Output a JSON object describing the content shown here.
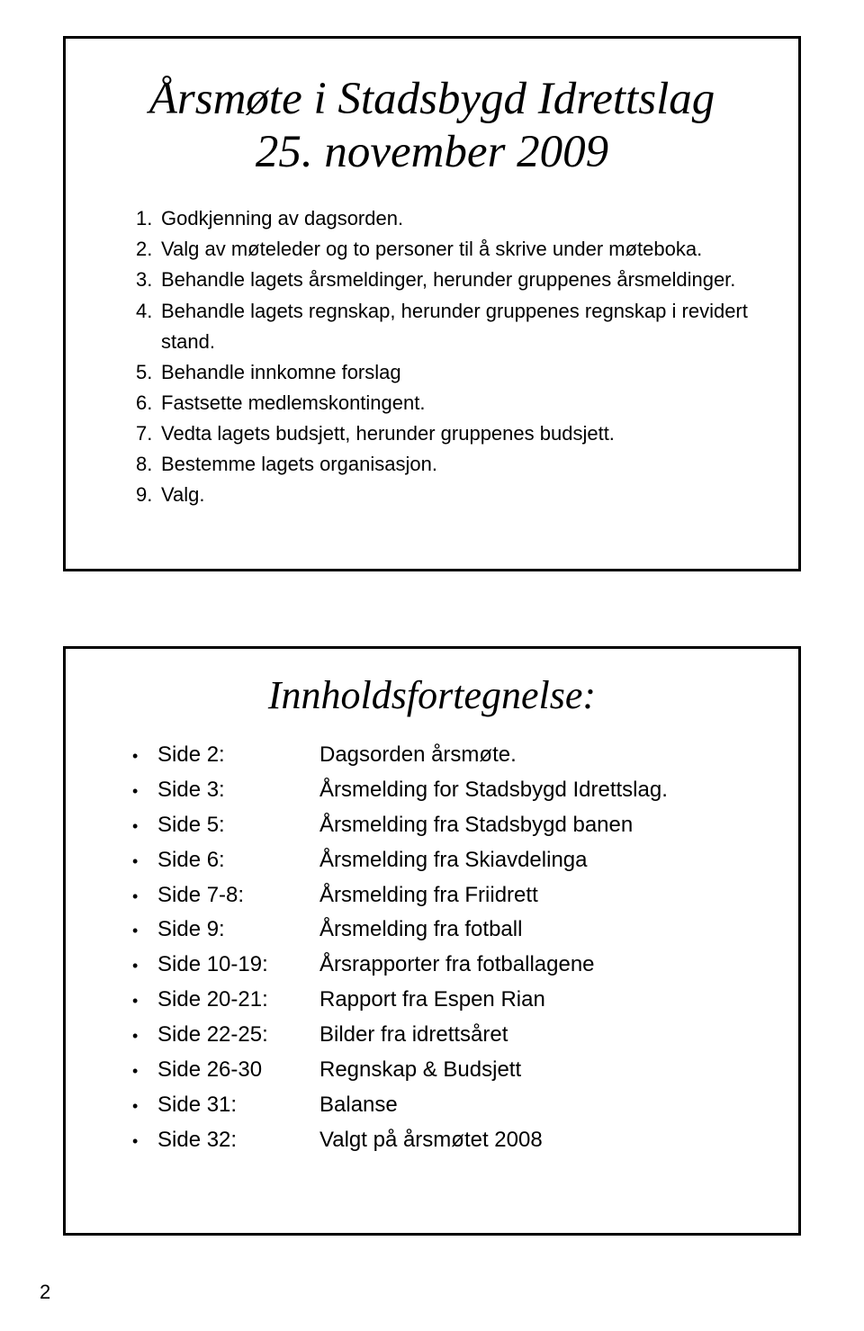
{
  "title_line1": "Årsmøte i Stadsbygd Idrettslag",
  "title_line2": "25. november 2009",
  "agenda": [
    {
      "n": "1.",
      "text": "Godkjenning av dagsorden."
    },
    {
      "n": "2.",
      "text": "Valg av møteleder og to personer til å skrive under møteboka."
    },
    {
      "n": "3.",
      "text": "Behandle lagets årsmeldinger, herunder gruppenes årsmeldinger."
    },
    {
      "n": "4.",
      "text": "Behandle lagets regnskap, herunder gruppenes regnskap i revidert stand."
    },
    {
      "n": "5.",
      "text": "Behandle innkomne forslag"
    },
    {
      "n": "6.",
      "text": "Fastsette medlemskontingent."
    },
    {
      "n": "7.",
      "text": "Vedta lagets budsjett, herunder gruppenes budsjett."
    },
    {
      "n": "8.",
      "text": "Bestemme lagets organisasjon."
    },
    {
      "n": "9.",
      "text": "Valg."
    }
  ],
  "toc_title": "Innholdsfortegnelse:",
  "toc": [
    {
      "page": "Side 2:",
      "desc": "Dagsorden årsmøte."
    },
    {
      "page": "Side 3:",
      "desc": "Årsmelding for Stadsbygd Idrettslag."
    },
    {
      "page": "Side 5:",
      "desc": "Årsmelding fra Stadsbygd banen"
    },
    {
      "page": "Side 6:",
      "desc": "Årsmelding fra Skiavdelinga"
    },
    {
      "page": "Side 7-8:",
      "desc": "Årsmelding fra Friidrett"
    },
    {
      "page": "Side 9:",
      "desc": "Årsmelding fra fotball"
    },
    {
      "page": "Side 10-19:",
      "desc": "Årsrapporter fra fotballagene"
    },
    {
      "page": "Side 20-21:",
      "desc": "Rapport fra Espen Rian"
    },
    {
      "page": "Side 22-25:",
      "desc": "Bilder fra idrettsåret"
    },
    {
      "page": "Side 26-30",
      "desc": "Regnskap & Budsjett"
    },
    {
      "page": "Side 31:",
      "desc": "Balanse"
    },
    {
      "page": "Side 32:",
      "desc": "Valgt på årsmøtet 2008"
    }
  ],
  "page_number": "2",
  "colors": {
    "border": "#000000",
    "text": "#000000",
    "bg": "#ffffff"
  },
  "fonts": {
    "heading_family": "Monotype Corsiva",
    "heading_size_pt": 38,
    "body_family": "Verdana",
    "body_size_pt": 17
  }
}
